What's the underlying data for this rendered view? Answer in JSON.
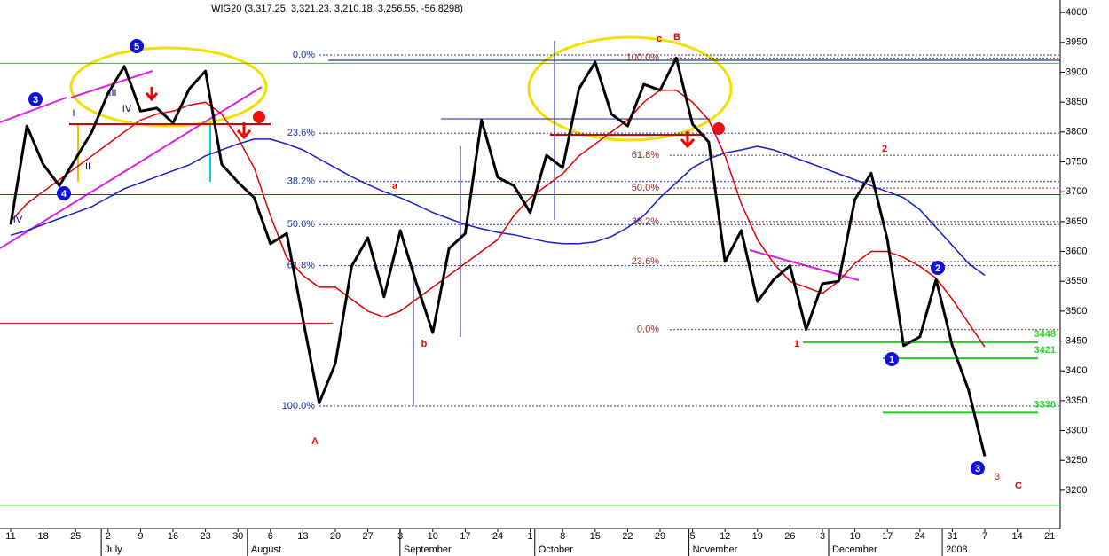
{
  "chart_data": {
    "type": "line",
    "title": "WIG20 (3,317.25, 3,321.23, 3,210.18, 3,256.55, -56.8298)",
    "categories": [
      "11",
      null,
      "18",
      null,
      "25",
      null,
      "2",
      null,
      "9",
      null,
      "16",
      null,
      "23",
      null,
      "30",
      null,
      "6",
      null,
      "13",
      null,
      "20",
      null,
      "27",
      null,
      "3",
      null,
      "10",
      null,
      "17",
      null,
      "24",
      null,
      "1",
      null,
      "8",
      null,
      "15",
      null,
      "22",
      null,
      "29",
      null,
      "5",
      null,
      "12",
      null,
      "19",
      null,
      "26",
      null,
      "3",
      null,
      "10",
      null,
      "17",
      null,
      "24",
      null,
      "31",
      null,
      "7",
      null,
      "14",
      null,
      "21"
    ],
    "months": [
      "July",
      "August",
      "September",
      "October",
      "November",
      "December",
      "2008"
    ],
    "series": [
      {
        "color": "#000000",
        "values": [
          3645,
          3810,
          3746,
          3710,
          3755,
          3800,
          3865,
          3910,
          3835,
          3840,
          3815,
          3872,
          3902,
          3746,
          3716,
          3690,
          3613,
          3630,
          3487,
          3346,
          3412,
          3575,
          3623,
          3524,
          3635,
          3546,
          3464,
          3605,
          3630,
          3820,
          3724,
          3710,
          3665,
          3761,
          3740,
          3872,
          3917,
          3830,
          3810,
          3880,
          3870,
          3924,
          3813,
          3783,
          3583,
          3635,
          3516,
          3553,
          3576,
          3469,
          3546,
          3550,
          3687,
          3731,
          3620,
          3442,
          3457,
          3553,
          3442,
          3368,
          3257,
          null,
          null,
          null,
          null
        ]
      },
      {
        "color": "#dd0000",
        "values": [
          3650,
          3680,
          3700,
          3720,
          3740,
          3760,
          3780,
          3800,
          3820,
          3830,
          3835,
          3845,
          3850,
          3830,
          3790,
          3740,
          3660,
          3590,
          3560,
          3540,
          3540,
          3520,
          3500,
          3490,
          3500,
          3520,
          3540,
          3560,
          3580,
          3600,
          3620,
          3660,
          3690,
          3710,
          3730,
          3760,
          3780,
          3800,
          3820,
          3850,
          3870,
          3870,
          3850,
          3820,
          3760,
          3680,
          3620,
          3580,
          3550,
          3540,
          3530,
          3550,
          3580,
          3600,
          3600,
          3590,
          3575,
          3555,
          3520,
          3480,
          3440,
          null,
          null,
          null,
          null
        ]
      },
      {
        "color": "#1a1acc",
        "values": [
          3627,
          3635,
          3645,
          3655,
          3665,
          3675,
          3690,
          3705,
          3715,
          3725,
          3735,
          3745,
          3760,
          3770,
          3780,
          3788,
          3788,
          3780,
          3770,
          3755,
          3740,
          3725,
          3712,
          3700,
          3690,
          3678,
          3665,
          3655,
          3645,
          3638,
          3632,
          3628,
          3622,
          3616,
          3613,
          3613,
          3616,
          3625,
          3640,
          3660,
          3690,
          3715,
          3740,
          3755,
          3765,
          3770,
          3776,
          3770,
          3760,
          3750,
          3740,
          3730,
          3720,
          3710,
          3700,
          3690,
          3670,
          3640,
          3610,
          3580,
          3560,
          null,
          null,
          null,
          null
        ]
      }
    ],
    "ylim": [
      3136,
      4021
    ],
    "yticks": [
      3200,
      3250,
      3300,
      3350,
      3400,
      3450,
      3500,
      3550,
      3600,
      3650,
      3700,
      3750,
      3800,
      3850,
      3900,
      3950,
      4000
    ],
    "fib_left": [
      {
        "text": "0.0%",
        "level": 3929
      },
      {
        "text": "23.6%",
        "level": 3798
      },
      {
        "text": "38.2%",
        "level": 3717
      },
      {
        "text": "50.0%",
        "level": 3645
      },
      {
        "text": "61.8%",
        "level": 3576
      },
      {
        "text": "100.0%",
        "level": 3341
      }
    ],
    "fib_right": [
      {
        "text": "100.0%",
        "level": 3924
      },
      {
        "text": "61.8%",
        "level": 3761
      },
      {
        "text": "50.0%",
        "level": 3706
      },
      {
        "text": "38.2%",
        "level": 3650
      },
      {
        "text": "23.6%",
        "level": 3583
      },
      {
        "text": "0.0%",
        "level": 3469
      }
    ],
    "green_levels": [
      3448,
      3421,
      3330
    ],
    "reference_lines": [
      {
        "value": 3915,
        "color": "#22cc22"
      },
      {
        "value": 3175,
        "color": "#22cc22"
      },
      {
        "value": 3695,
        "color": "#cc0000"
      },
      {
        "value": 3480,
        "color": "#cc0000"
      },
      {
        "value": 3920,
        "color": "#000080"
      }
    ],
    "annotations": [
      {
        "text": "A",
        "color": "#ee0000"
      },
      {
        "text": "B",
        "color": "#ee0000"
      },
      {
        "text": "c",
        "color": "#ee0000"
      },
      {
        "text": "a",
        "color": "#ee0000"
      },
      {
        "text": "b",
        "color": "#ee0000"
      },
      {
        "text": "C",
        "color": "#ee0000"
      },
      {
        "text": "3",
        "color": "#ee0000"
      },
      {
        "text": "1",
        "color": "#ee0000"
      },
      {
        "text": "2",
        "color": "#ee0000"
      },
      {
        "text": "I",
        "color": "#000080"
      },
      {
        "text": "II",
        "color": "#000080"
      },
      {
        "text": "III",
        "color": "#000080"
      },
      {
        "text": "IV",
        "color": "#000080"
      },
      {
        "text": "IV",
        "color": "#000080"
      },
      {
        "text": "5",
        "color": "#1010dd",
        "circle": true
      },
      {
        "text": "3",
        "color": "#1010dd",
        "circle": true
      },
      {
        "text": "4",
        "color": "#1010dd",
        "circle": true
      },
      {
        "text": "2",
        "color": "#1010dd",
        "circle": true
      },
      {
        "text": "1",
        "color": "#1010dd",
        "circle": true
      },
      {
        "text": "3",
        "color": "#1010dd",
        "circle": true
      }
    ]
  }
}
